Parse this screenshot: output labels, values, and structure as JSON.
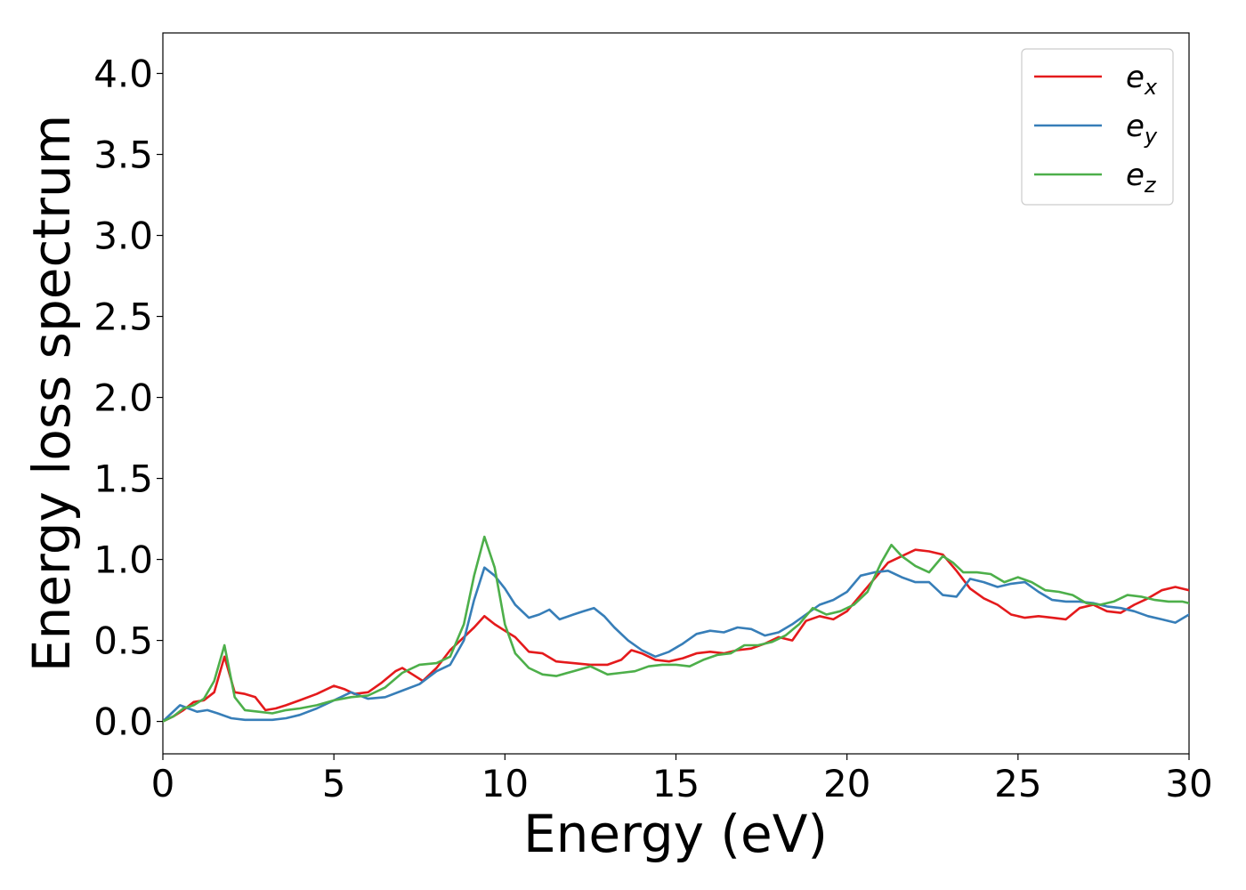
{
  "chart_data": {
    "type": "line",
    "title": "",
    "xlabel": "Energy (eV)",
    "ylabel": "Energy loss spectrum",
    "xlim": [
      0,
      30
    ],
    "ylim": [
      -0.2,
      4.25
    ],
    "xticks": [
      "0",
      "5",
      "10",
      "15",
      "20",
      "25",
      "30"
    ],
    "yticks": [
      "0.0",
      "0.5",
      "1.0",
      "1.5",
      "2.0",
      "2.5",
      "3.0",
      "3.5",
      "4.0"
    ],
    "grid": false,
    "legend_position": "top-right",
    "series": [
      {
        "name": "ex",
        "name_base": "e",
        "name_sub": "x",
        "color": "#e41a1c",
        "x": [
          0,
          0.3,
          0.6,
          0.9,
          1.2,
          1.5,
          1.8,
          2.1,
          2.4,
          2.7,
          3.0,
          3.3,
          3.6,
          4.0,
          4.5,
          5.0,
          5.3,
          5.6,
          6.0,
          6.4,
          6.8,
          7.0,
          7.3,
          7.6,
          8.0,
          8.4,
          8.8,
          9.1,
          9.4,
          9.7,
          10.0,
          10.3,
          10.7,
          11.1,
          11.5,
          12.0,
          12.5,
          13.0,
          13.4,
          13.7,
          14.0,
          14.4,
          14.8,
          15.2,
          15.6,
          16.0,
          16.4,
          16.8,
          17.2,
          17.6,
          18.0,
          18.4,
          18.8,
          19.2,
          19.6,
          20.0,
          20.4,
          20.8,
          21.2,
          21.6,
          22.0,
          22.4,
          22.8,
          23.2,
          23.6,
          24.0,
          24.4,
          24.8,
          25.2,
          25.6,
          26.0,
          26.4,
          26.8,
          27.2,
          27.6,
          28.0,
          28.4,
          28.8,
          29.2,
          29.6,
          30.0
        ],
        "y": [
          0.0,
          0.03,
          0.07,
          0.12,
          0.13,
          0.18,
          0.4,
          0.18,
          0.17,
          0.15,
          0.07,
          0.08,
          0.1,
          0.13,
          0.17,
          0.22,
          0.2,
          0.17,
          0.18,
          0.24,
          0.31,
          0.33,
          0.29,
          0.25,
          0.33,
          0.44,
          0.52,
          0.58,
          0.65,
          0.6,
          0.56,
          0.52,
          0.43,
          0.42,
          0.37,
          0.36,
          0.35,
          0.35,
          0.38,
          0.44,
          0.42,
          0.38,
          0.37,
          0.39,
          0.42,
          0.43,
          0.42,
          0.44,
          0.45,
          0.48,
          0.52,
          0.5,
          0.62,
          0.65,
          0.63,
          0.68,
          0.78,
          0.88,
          0.98,
          1.02,
          1.06,
          1.05,
          1.03,
          0.93,
          0.82,
          0.76,
          0.72,
          0.66,
          0.64,
          0.65,
          0.64,
          0.63,
          0.7,
          0.72,
          0.68,
          0.67,
          0.72,
          0.76,
          0.81,
          0.83,
          0.81
        ]
      },
      {
        "name": "ey",
        "name_base": "e",
        "name_sub": "y",
        "color": "#377eb8",
        "x": [
          0,
          0.25,
          0.5,
          0.75,
          1.0,
          1.3,
          1.6,
          2.0,
          2.4,
          2.8,
          3.2,
          3.6,
          4.0,
          4.5,
          5.0,
          5.5,
          6.0,
          6.5,
          7.0,
          7.5,
          8.0,
          8.4,
          8.8,
          9.1,
          9.4,
          9.7,
          10.0,
          10.3,
          10.7,
          11.0,
          11.3,
          11.6,
          12.0,
          12.3,
          12.6,
          12.9,
          13.2,
          13.6,
          14.0,
          14.4,
          14.8,
          15.2,
          15.6,
          16.0,
          16.4,
          16.8,
          17.2,
          17.6,
          18.0,
          18.4,
          18.8,
          19.2,
          19.6,
          20.0,
          20.4,
          20.8,
          21.2,
          21.6,
          22.0,
          22.4,
          22.8,
          23.2,
          23.6,
          24.0,
          24.4,
          24.8,
          25.2,
          25.6,
          26.0,
          26.4,
          26.8,
          27.2,
          27.6,
          28.0,
          28.4,
          28.8,
          29.2,
          29.6,
          30.0
        ],
        "y": [
          0.0,
          0.05,
          0.1,
          0.08,
          0.06,
          0.07,
          0.05,
          0.02,
          0.01,
          0.01,
          0.01,
          0.02,
          0.04,
          0.08,
          0.13,
          0.18,
          0.14,
          0.15,
          0.19,
          0.23,
          0.31,
          0.35,
          0.5,
          0.75,
          0.95,
          0.9,
          0.82,
          0.72,
          0.64,
          0.66,
          0.69,
          0.63,
          0.66,
          0.68,
          0.7,
          0.65,
          0.58,
          0.5,
          0.44,
          0.4,
          0.43,
          0.48,
          0.54,
          0.56,
          0.55,
          0.58,
          0.57,
          0.53,
          0.55,
          0.6,
          0.66,
          0.72,
          0.75,
          0.8,
          0.9,
          0.92,
          0.93,
          0.89,
          0.86,
          0.86,
          0.78,
          0.77,
          0.88,
          0.86,
          0.83,
          0.85,
          0.86,
          0.8,
          0.75,
          0.74,
          0.74,
          0.73,
          0.71,
          0.7,
          0.68,
          0.65,
          0.63,
          0.61,
          0.66
        ]
      },
      {
        "name": "ez",
        "name_base": "e",
        "name_sub": "z",
        "color": "#4daf4a",
        "x": [
          0,
          0.3,
          0.6,
          0.9,
          1.2,
          1.5,
          1.8,
          2.1,
          2.4,
          2.8,
          3.2,
          3.6,
          4.0,
          4.5,
          5.0,
          5.5,
          6.0,
          6.5,
          7.0,
          7.5,
          8.0,
          8.4,
          8.8,
          9.1,
          9.4,
          9.7,
          10.0,
          10.3,
          10.7,
          11.1,
          11.5,
          12.0,
          12.5,
          13.0,
          13.4,
          13.8,
          14.2,
          14.6,
          15.0,
          15.4,
          15.8,
          16.2,
          16.6,
          17.0,
          17.4,
          17.8,
          18.2,
          18.6,
          19.0,
          19.4,
          19.8,
          20.2,
          20.6,
          21.0,
          21.3,
          21.6,
          22.0,
          22.4,
          22.8,
          23.1,
          23.4,
          23.8,
          24.2,
          24.6,
          25.0,
          25.4,
          25.8,
          26.2,
          26.6,
          27.0,
          27.4,
          27.8,
          28.2,
          28.6,
          29.0,
          29.4,
          29.8,
          30.0
        ],
        "y": [
          0.0,
          0.03,
          0.08,
          0.1,
          0.14,
          0.25,
          0.47,
          0.15,
          0.07,
          0.06,
          0.05,
          0.07,
          0.08,
          0.1,
          0.13,
          0.15,
          0.16,
          0.21,
          0.3,
          0.35,
          0.36,
          0.4,
          0.6,
          0.9,
          1.14,
          0.95,
          0.6,
          0.42,
          0.33,
          0.29,
          0.28,
          0.31,
          0.34,
          0.29,
          0.3,
          0.31,
          0.34,
          0.35,
          0.35,
          0.34,
          0.38,
          0.41,
          0.42,
          0.47,
          0.47,
          0.49,
          0.53,
          0.6,
          0.7,
          0.66,
          0.68,
          0.72,
          0.8,
          0.98,
          1.09,
          1.02,
          0.96,
          0.92,
          1.02,
          0.98,
          0.92,
          0.92,
          0.91,
          0.86,
          0.89,
          0.86,
          0.81,
          0.8,
          0.78,
          0.73,
          0.72,
          0.74,
          0.78,
          0.77,
          0.75,
          0.74,
          0.74,
          0.73
        ]
      }
    ]
  }
}
